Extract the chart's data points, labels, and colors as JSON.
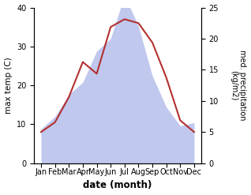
{
  "months": [
    "Jan",
    "Feb",
    "Mar",
    "Apr",
    "May",
    "Jun",
    "Jul",
    "Aug",
    "Sep",
    "Oct",
    "Nov",
    "Dec"
  ],
  "x": [
    0,
    1,
    2,
    3,
    4,
    5,
    6,
    7,
    8,
    9,
    10,
    11
  ],
  "temp": [
    8,
    10.5,
    17,
    26,
    23,
    35,
    37,
    36,
    31,
    22,
    11,
    8
  ],
  "precip": [
    5.5,
    7.5,
    11,
    13,
    18,
    20,
    27,
    22,
    14,
    9,
    6,
    6.5
  ],
  "temp_color": "#b33030",
  "precip_fill_color": "#c0c8ee",
  "bg_color": "#ffffff",
  "ylim_left": [
    0,
    40
  ],
  "ylim_right": [
    0,
    25
  ],
  "yticks_left": [
    0,
    10,
    20,
    30,
    40
  ],
  "yticks_right": [
    0,
    5,
    10,
    15,
    20,
    25
  ],
  "xlabel": "date (month)",
  "ylabel_left": "max temp (C)",
  "ylabel_right": "med. precipitation\n(kg/m2)",
  "figsize": [
    3.18,
    2.47
  ],
  "dpi": 100
}
